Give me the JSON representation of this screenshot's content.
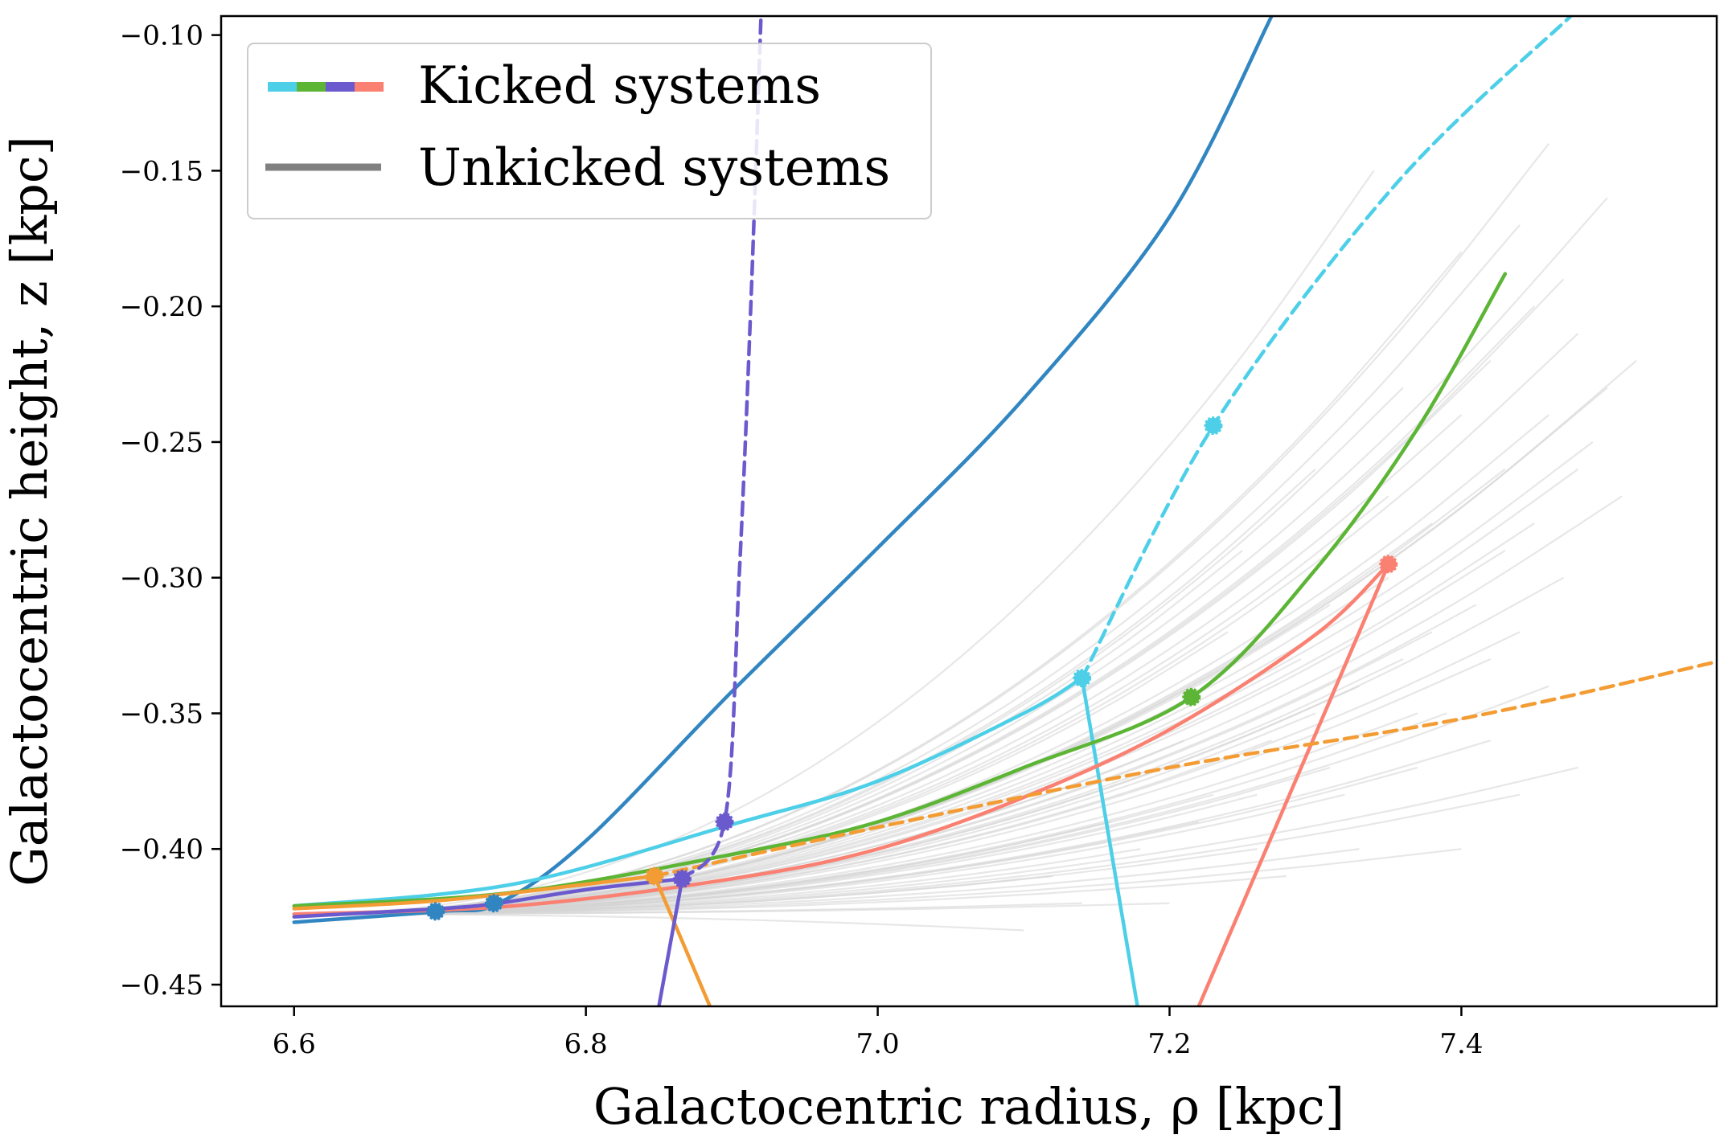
{
  "chart_data": {
    "type": "line",
    "xlabel": "Galactocentric radius, ρ [kpc]",
    "ylabel": "Galactocentric height, z [kpc]",
    "xlim": [
      6.55,
      7.575
    ],
    "ylim": [
      -0.458,
      -0.093
    ],
    "xticks": [
      "6.6",
      "6.8",
      "7.0",
      "7.2",
      "7.4"
    ],
    "yticks": [
      "−0.10",
      "−0.15",
      "−0.20",
      "−0.25",
      "−0.30",
      "−0.35",
      "−0.40",
      "−0.45"
    ],
    "grid": false,
    "legend": {
      "placement": "top-left",
      "entries": [
        {
          "label": "Kicked systems",
          "colors": [
            "#4dcfe8",
            "#5db536",
            "#6a5acd",
            "#fa8072"
          ]
        },
        {
          "label": "Unkicked systems",
          "colors": [
            "#808080"
          ]
        }
      ]
    },
    "background_tracks": {
      "color": "#d3d3d3",
      "start": [
        6.6,
        -0.424
      ],
      "end_points": [
        [
          7.46,
          -0.14
        ],
        [
          7.44,
          -0.17
        ],
        [
          7.47,
          -0.19
        ],
        [
          7.48,
          -0.21
        ],
        [
          7.5,
          -0.23
        ],
        [
          7.49,
          -0.25
        ],
        [
          7.51,
          -0.27
        ],
        [
          7.45,
          -0.2
        ],
        [
          7.42,
          -0.22
        ],
        [
          7.4,
          -0.24
        ],
        [
          7.43,
          -0.26
        ],
        [
          7.45,
          -0.28
        ],
        [
          7.47,
          -0.3
        ],
        [
          7.38,
          -0.28
        ],
        [
          7.35,
          -0.3
        ],
        [
          7.41,
          -0.31
        ],
        [
          7.44,
          -0.32
        ],
        [
          7.36,
          -0.33
        ],
        [
          7.39,
          -0.35
        ],
        [
          7.33,
          -0.34
        ],
        [
          7.3,
          -0.35
        ],
        [
          7.27,
          -0.36
        ],
        [
          7.46,
          -0.34
        ],
        [
          7.42,
          -0.36
        ],
        [
          7.48,
          -0.37
        ],
        [
          7.37,
          -0.37
        ],
        [
          7.32,
          -0.38
        ],
        [
          7.26,
          -0.38
        ],
        [
          7.22,
          -0.39
        ],
        [
          7.18,
          -0.4
        ],
        [
          7.28,
          -0.41
        ],
        [
          7.2,
          -0.42
        ],
        [
          7.14,
          -0.42
        ],
        [
          7.1,
          -0.43
        ],
        [
          7.34,
          -0.15
        ],
        [
          7.4,
          -0.18
        ],
        [
          7.36,
          -0.23
        ],
        [
          7.3,
          -0.26
        ],
        [
          7.25,
          -0.29
        ],
        [
          7.24,
          -0.32
        ],
        [
          7.5,
          -0.16
        ],
        [
          7.52,
          -0.22
        ],
        [
          7.46,
          -0.24
        ],
        [
          7.43,
          -0.29
        ],
        [
          7.38,
          -0.32
        ],
        [
          7.31,
          -0.31
        ],
        [
          7.35,
          -0.27
        ],
        [
          7.29,
          -0.33
        ],
        [
          7.21,
          -0.36
        ],
        [
          7.16,
          -0.39
        ],
        [
          7.12,
          -0.41
        ],
        [
          7.44,
          -0.38
        ],
        [
          7.4,
          -0.4
        ],
        [
          7.33,
          -0.4
        ],
        [
          7.26,
          -0.4
        ],
        [
          7.48,
          -0.26
        ],
        [
          7.42,
          -0.33
        ],
        [
          7.37,
          -0.35
        ],
        [
          7.31,
          -0.37
        ],
        [
          7.23,
          -0.38
        ]
      ]
    },
    "series": [
      {
        "color": "#3186c2",
        "style": "solid",
        "points": [
          [
            6.6,
            -0.427
          ],
          [
            6.7,
            -0.423
          ],
          [
            6.74,
            -0.42
          ],
          [
            6.8,
            -0.397
          ],
          [
            6.9,
            -0.342
          ],
          [
            7.0,
            -0.289
          ],
          [
            7.1,
            -0.234
          ],
          [
            7.2,
            -0.167
          ],
          [
            7.27,
            -0.093
          ]
        ],
        "markers": [
          [
            6.697,
            -0.423
          ],
          [
            6.737,
            -0.42
          ]
        ]
      },
      {
        "color": "#4dcfe8",
        "style": "solid",
        "points": [
          [
            6.6,
            -0.421
          ],
          [
            6.75,
            -0.413
          ],
          [
            6.9,
            -0.391
          ],
          [
            7.0,
            -0.375
          ],
          [
            7.1,
            -0.35
          ],
          [
            7.14,
            -0.337
          ]
        ],
        "markers": [
          [
            7.14,
            -0.337
          ]
        ]
      },
      {
        "color": "#4dcfe8",
        "style": "dashed",
        "points": [
          [
            7.14,
            -0.337
          ],
          [
            7.23,
            -0.244
          ],
          [
            7.355,
            -0.155
          ],
          [
            7.475,
            -0.093
          ]
        ],
        "markers": [
          [
            7.23,
            -0.244
          ]
        ]
      },
      {
        "color": "#4dcfe8",
        "style": "solid",
        "points": [
          [
            7.14,
            -0.337
          ],
          [
            7.178,
            -0.458
          ]
        ],
        "markers": []
      },
      {
        "color": "#5db536",
        "style": "solid",
        "points": [
          [
            6.6,
            -0.421
          ],
          [
            6.75,
            -0.416
          ],
          [
            6.9,
            -0.402
          ],
          [
            7.0,
            -0.39
          ],
          [
            7.1,
            -0.37
          ],
          [
            7.215,
            -0.344
          ],
          [
            7.3,
            -0.297
          ],
          [
            7.37,
            -0.245
          ],
          [
            7.43,
            -0.188
          ]
        ],
        "markers": [
          [
            7.215,
            -0.344
          ]
        ]
      },
      {
        "color": "#fa8072",
        "style": "solid",
        "points": [
          [
            6.6,
            -0.424
          ],
          [
            6.75,
            -0.421
          ],
          [
            6.9,
            -0.411
          ],
          [
            7.0,
            -0.4
          ],
          [
            7.1,
            -0.381
          ],
          [
            7.2,
            -0.356
          ],
          [
            7.3,
            -0.321
          ],
          [
            7.35,
            -0.295
          ]
        ],
        "markers": [
          [
            7.35,
            -0.295
          ]
        ]
      },
      {
        "color": "#fa8072",
        "style": "solid",
        "points": [
          [
            7.35,
            -0.295
          ],
          [
            7.22,
            -0.458
          ]
        ],
        "markers": []
      },
      {
        "color": "#f39c34",
        "style": "solid",
        "points": [
          [
            6.6,
            -0.422
          ],
          [
            6.7,
            -0.419
          ],
          [
            6.8,
            -0.413
          ],
          [
            6.847,
            -0.41
          ]
        ],
        "markers": [
          [
            6.847,
            -0.41
          ]
        ]
      },
      {
        "color": "#f39c34",
        "style": "dashed",
        "points": [
          [
            6.847,
            -0.41
          ],
          [
            7.0,
            -0.392
          ],
          [
            7.2,
            -0.37
          ],
          [
            7.4,
            -0.352
          ],
          [
            7.575,
            -0.331
          ]
        ],
        "markers": []
      },
      {
        "color": "#f39c34",
        "style": "solid",
        "points": [
          [
            6.847,
            -0.41
          ],
          [
            6.885,
            -0.458
          ]
        ],
        "markers": []
      },
      {
        "color": "#6a5acd",
        "style": "solid",
        "points": [
          [
            6.6,
            -0.425
          ],
          [
            6.7,
            -0.422
          ],
          [
            6.74,
            -0.42
          ],
          [
            6.8,
            -0.415
          ],
          [
            6.866,
            -0.411
          ]
        ],
        "markers": [
          [
            6.866,
            -0.411
          ]
        ]
      },
      {
        "color": "#6a5acd",
        "style": "dashed",
        "points": [
          [
            6.866,
            -0.411
          ],
          [
            6.895,
            -0.39
          ],
          [
            6.905,
            -0.3
          ],
          [
            6.913,
            -0.2
          ],
          [
            6.92,
            -0.093
          ]
        ],
        "markers": [
          [
            6.895,
            -0.39
          ]
        ]
      },
      {
        "color": "#6a5acd",
        "style": "solid",
        "points": [
          [
            6.866,
            -0.411
          ],
          [
            6.85,
            -0.458
          ]
        ],
        "markers": []
      }
    ]
  }
}
